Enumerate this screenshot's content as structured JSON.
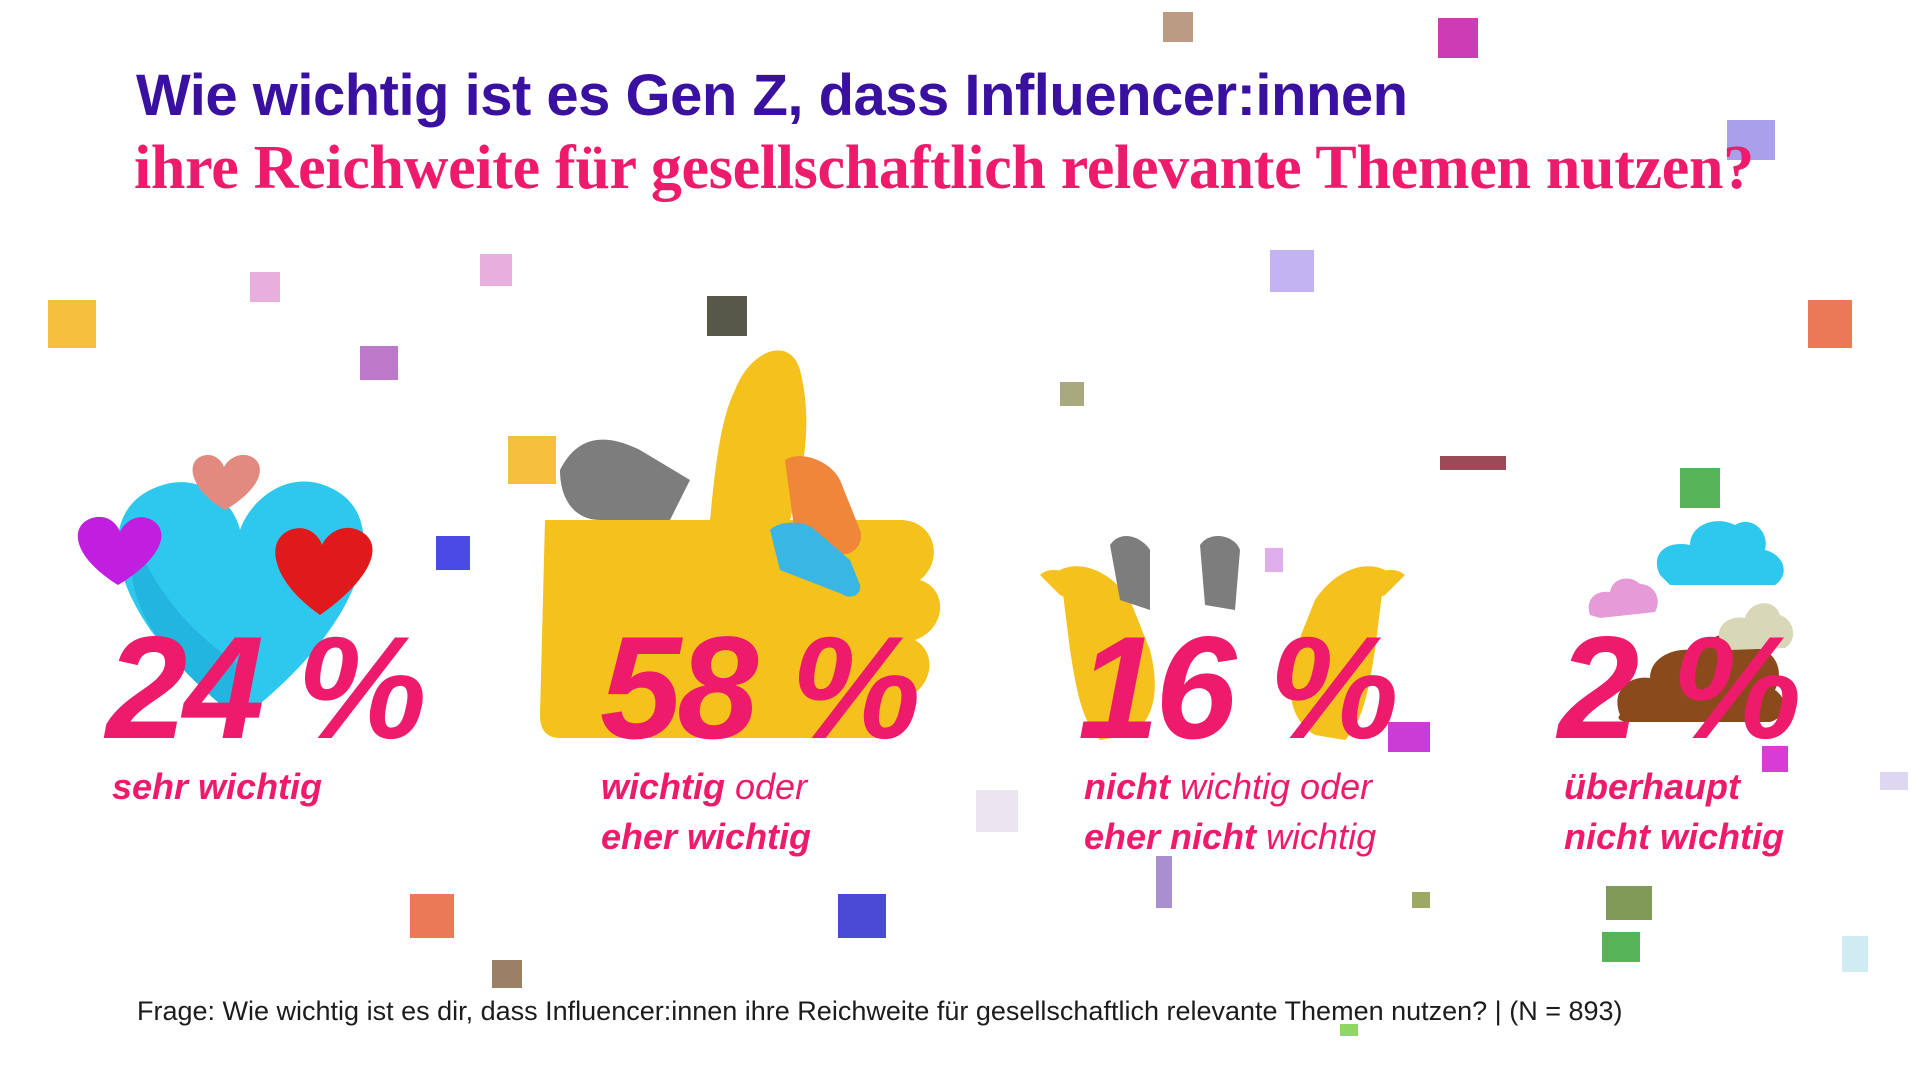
{
  "title": {
    "line1": "Wie wichtig ist es Gen Z, dass Influencer:innen",
    "line2": "ihre Reichweite für gesellschaftlich relevante Themen nutzen?"
  },
  "colors": {
    "title_line1": "#3a10a0",
    "accent": "#ee1a6b",
    "footnote": "#1c1c1c"
  },
  "chart_data": {
    "type": "bar",
    "categories": [
      "sehr wichtig",
      "wichtig oder eher wichtig",
      "nicht wichtig oder eher nicht wichtig",
      "überhaupt nicht wichtig"
    ],
    "values": [
      24,
      58,
      16,
      2
    ],
    "value_labels": [
      "24 %",
      "58 %",
      "16 %",
      "2 %"
    ],
    "unit": "%",
    "title": "Wie wichtig ist es Gen Z, dass Influencer:innen ihre Reichweite für gesellschaftlich relevante Themen nutzen?"
  },
  "labels": {
    "c1": {
      "l1_bold": "sehr wichtig"
    },
    "c2": {
      "l1_bold": "wichtig",
      "l1_rest": " oder",
      "l2_bold": "eher wichtig"
    },
    "c3": {
      "l1_bold": "nicht",
      "l1_rest": " wichtig oder",
      "l2_bold": "eher nicht",
      "l2_rest": " wichtig"
    },
    "c4": {
      "l1_bold": "überhaupt",
      "l2_bold": "nicht wichtig"
    }
  },
  "illustrations": [
    "heart-emojis-icon",
    "thumbs-up-icon",
    "open-hands-icon",
    "poop-emojis-icon"
  ],
  "footnote": "Frage: Wie wichtig ist es dir, dass Influencer:innen ihre Reichweite für gesellschaftlich relevante Themen nutzen? | (N = 893)"
}
